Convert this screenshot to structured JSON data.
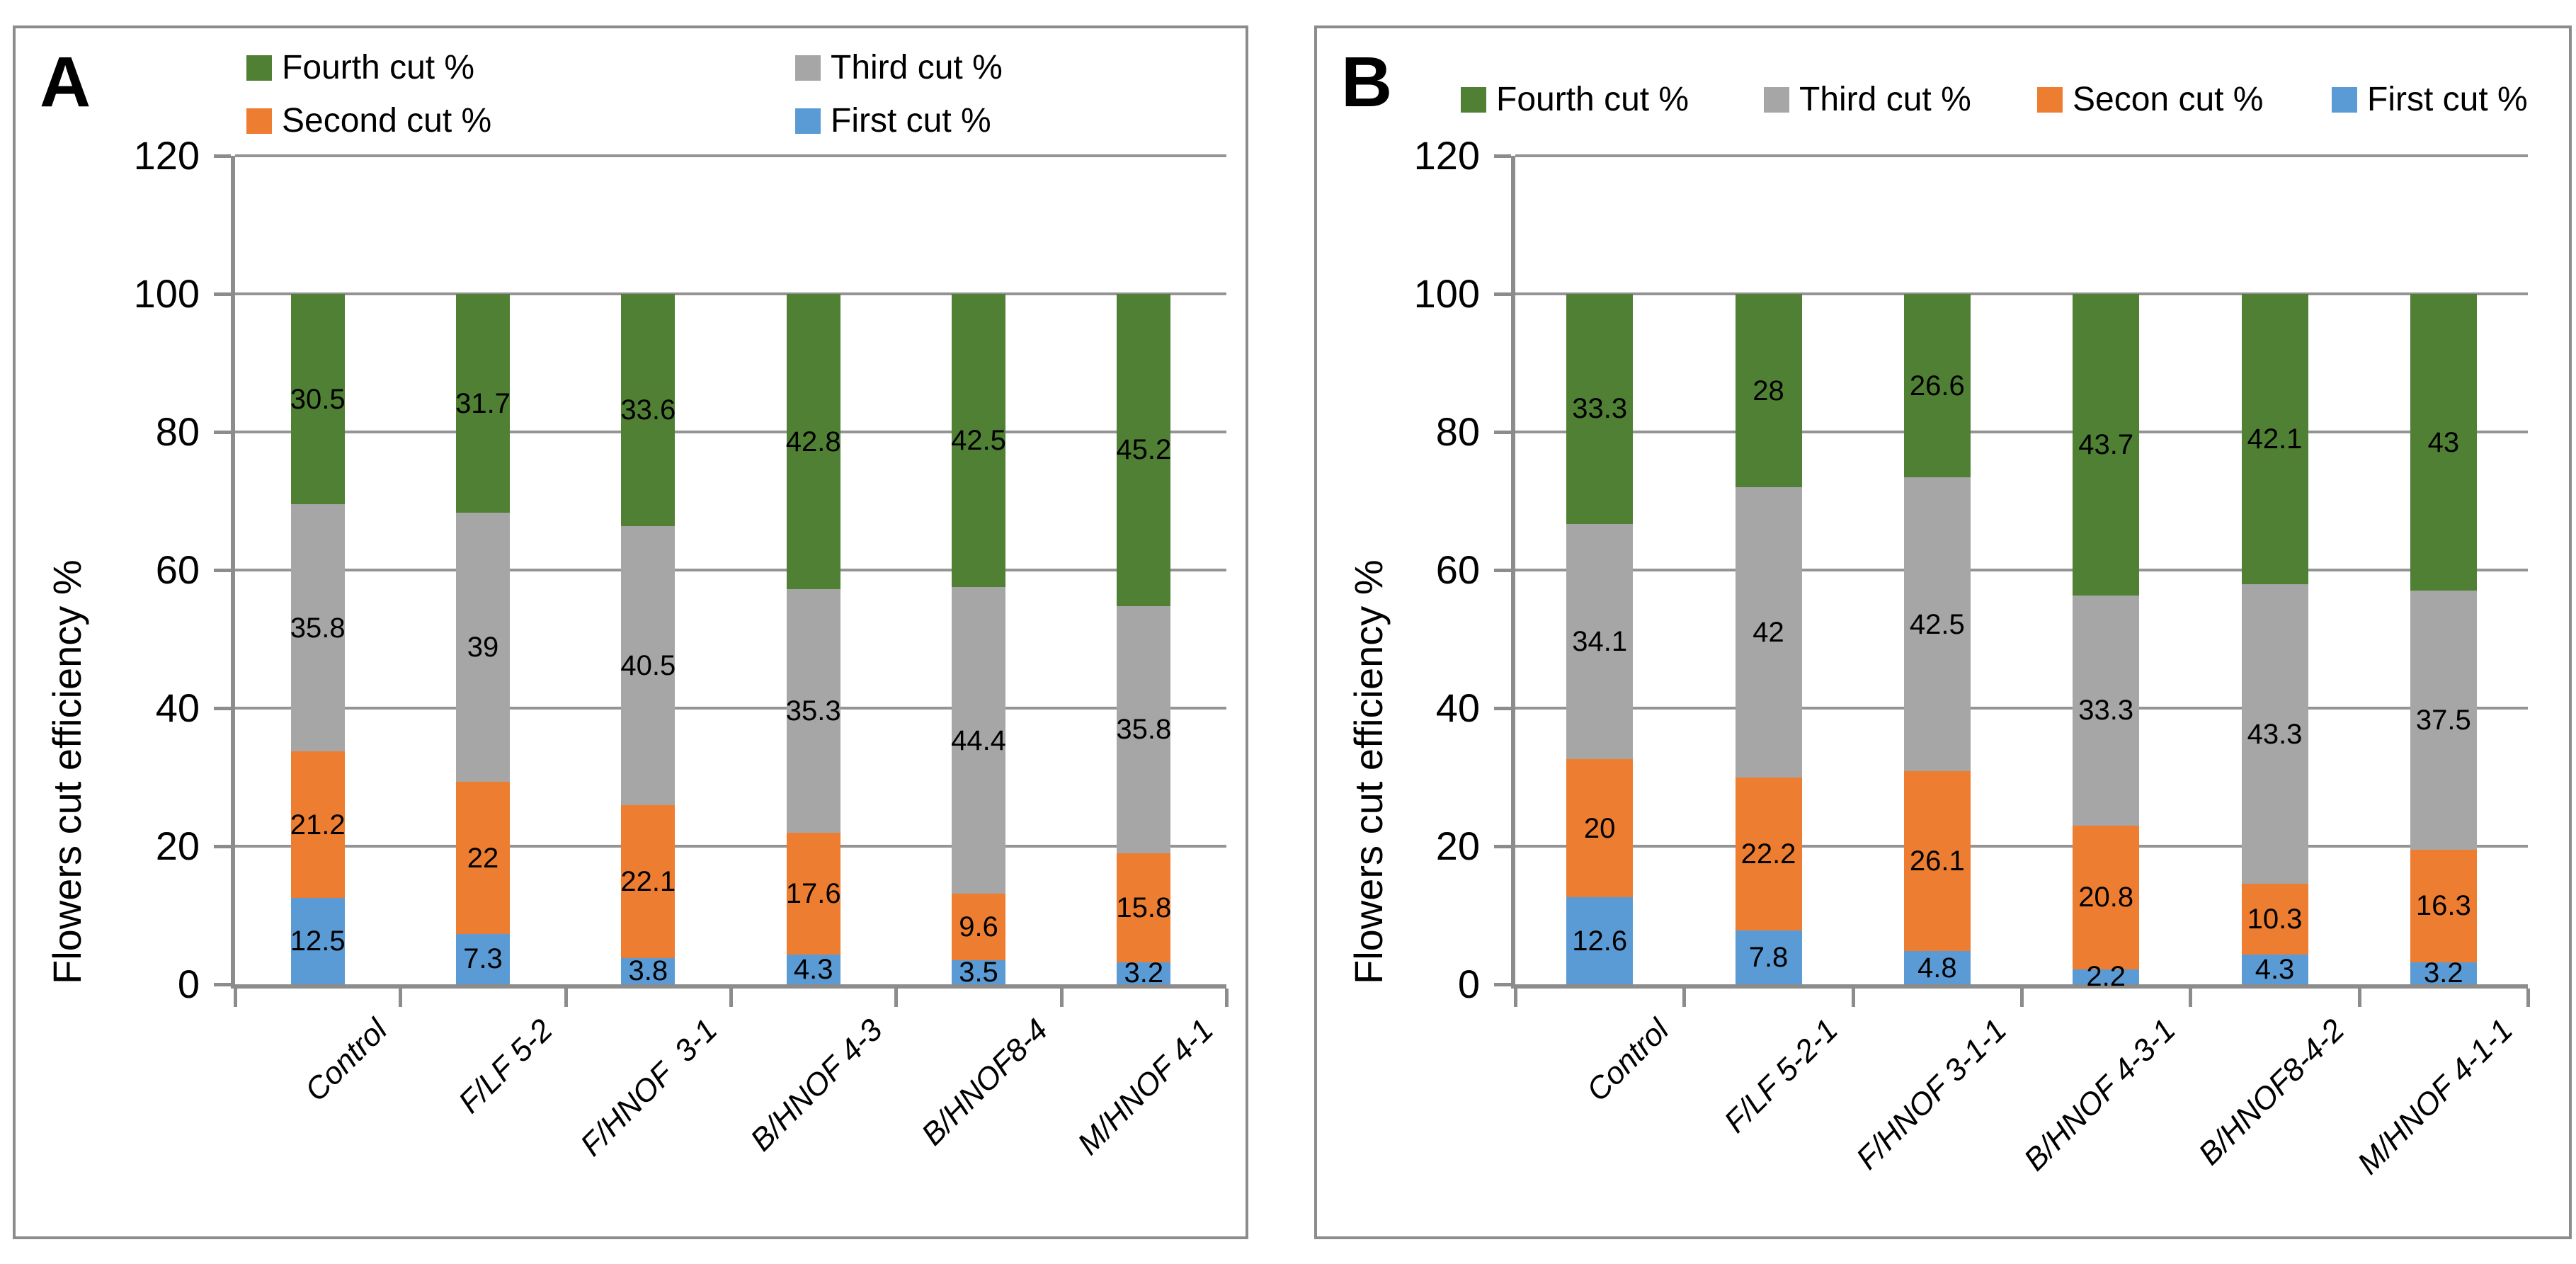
{
  "figure": {
    "panels": [
      {
        "label": "A"
      },
      {
        "label": "B"
      }
    ]
  },
  "y_axis": {
    "title": "Flowers cut efficiency %",
    "ticks": [
      0,
      20,
      40,
      60,
      80,
      100,
      120
    ],
    "max": 120
  },
  "colors": {
    "first_cut": "#5B9BD5",
    "second_cut": "#ED7D31",
    "third_cut": "#A6A6A6",
    "fourth_cut": "#4F8034",
    "grid": "#949494",
    "axis": "#8C8C8C",
    "panel_border": "#8C8C8C",
    "text": "#000000"
  },
  "chart_data": [
    {
      "type": "bar",
      "stacked": true,
      "panel": "A",
      "ylabel": "Flowers cut efficiency %",
      "ylim": [
        0,
        120
      ],
      "grid": true,
      "legend_position": "top-two-rows",
      "legend": [
        {
          "label": "Fourth cut %",
          "color_key": "fourth_cut"
        },
        {
          "label": "Third cut %",
          "color_key": "third_cut"
        },
        {
          "label": "Second cut %",
          "color_key": "second_cut"
        },
        {
          "label": "First cut %",
          "color_key": "first_cut"
        }
      ],
      "categories": [
        "Control",
        "F/LF 5-2",
        "F/HNOF  3-1",
        "B/HNOF 4-3",
        "B/HNOF8-4",
        "M/HNOF 4-1"
      ],
      "series": [
        {
          "name": "First cut %",
          "color_key": "first_cut",
          "values": [
            12.5,
            7.3,
            3.8,
            4.3,
            3.5,
            3.2
          ]
        },
        {
          "name": "Second cut %",
          "color_key": "second_cut",
          "values": [
            21.2,
            22,
            22.1,
            17.6,
            9.6,
            15.8
          ]
        },
        {
          "name": "Third cut %",
          "color_key": "third_cut",
          "values": [
            35.8,
            39,
            40.5,
            35.3,
            44.4,
            35.8
          ]
        },
        {
          "name": "Fourth cut %",
          "color_key": "fourth_cut",
          "values": [
            30.5,
            31.7,
            33.6,
            42.8,
            42.5,
            45.2
          ]
        }
      ]
    },
    {
      "type": "bar",
      "stacked": true,
      "panel": "B",
      "ylabel": "Flowers cut efficiency %",
      "ylim": [
        0,
        120
      ],
      "grid": true,
      "legend_position": "top-row",
      "legend": [
        {
          "label": "Fourth cut %",
          "color_key": "fourth_cut"
        },
        {
          "label": "Third cut %",
          "color_key": "third_cut"
        },
        {
          "label": "Secon cut %",
          "color_key": "second_cut"
        },
        {
          "label": "First cut %",
          "color_key": "first_cut"
        }
      ],
      "categories": [
        "Control",
        "F/LF 5-2-1",
        "F/HNOF 3-1-1",
        "B/HNOF 4-3-1",
        "B/HNOF8-4-2",
        "M/HNOF 4-1-1"
      ],
      "series": [
        {
          "name": "First cut %",
          "color_key": "first_cut",
          "values": [
            12.6,
            7.8,
            4.8,
            2.2,
            4.3,
            3.2
          ]
        },
        {
          "name": "Secon cut %",
          "color_key": "second_cut",
          "values": [
            20,
            22.2,
            26.1,
            20.8,
            10.3,
            16.3
          ]
        },
        {
          "name": "Third cut %",
          "color_key": "third_cut",
          "values": [
            34.1,
            42,
            42.5,
            33.3,
            43.3,
            37.5
          ]
        },
        {
          "name": "Fourth cut %",
          "color_key": "fourth_cut",
          "values": [
            33.3,
            28,
            26.6,
            43.7,
            42.1,
            43
          ]
        }
      ]
    }
  ]
}
